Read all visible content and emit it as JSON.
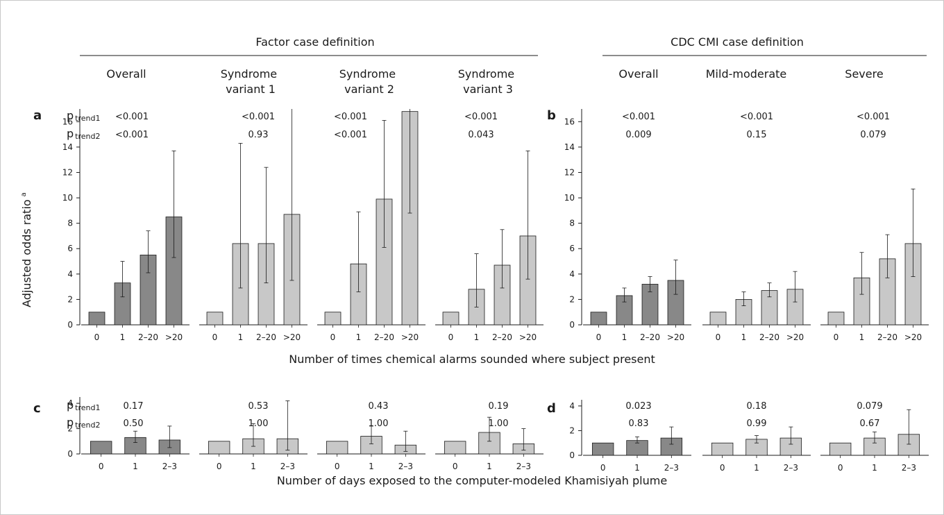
{
  "colors": {
    "dark_bar": "#888888",
    "light_bar": "#c8c8c8",
    "ref_bar": "#c8c8c8",
    "line": "#1a1a1a"
  },
  "headers": {
    "factor": "Factor case definition",
    "cdc": "CDC CMI case definition",
    "factor_cols": [
      "Overall",
      "Syndrome variant 1",
      "Syndrome variant 2",
      "Syndrome variant 3"
    ],
    "cdc_cols": [
      "Overall",
      "Mild-moderate",
      "Severe"
    ]
  },
  "y_axis_label": "Adjusted odds ratio",
  "y_axis_label_sup": "a",
  "ptrend1_label": "p",
  "ptrend1_sub": "trend1",
  "ptrend2_label": "p",
  "ptrend2_sub": "trend2",
  "xlabel_top": "Number of times chemical alarms sounded where subject present",
  "xlabel_bottom": "Number of days exposed to the computer-modeled Khamisiyah plume",
  "chart_data": [
    {
      "type": "bar",
      "panel": "a",
      "ylim": [
        0,
        17
      ],
      "yticks": [
        0,
        2,
        4,
        6,
        8,
        10,
        12,
        14,
        16
      ],
      "categories": [
        "0",
        "1",
        "2–20",
        ">20"
      ],
      "groups": [
        {
          "name": "Overall",
          "shade": "dark",
          "values": [
            1,
            3.3,
            5.5,
            8.5
          ],
          "ci_low": [
            1,
            2.2,
            4.1,
            5.3
          ],
          "ci_high": [
            1,
            5.0,
            7.4,
            13.7
          ],
          "ptrend1": "<0.001",
          "ptrend2": "<0.001"
        },
        {
          "name": "Syndrome variant 1",
          "shade": "light",
          "values": [
            1,
            6.4,
            6.4,
            8.7
          ],
          "ci_low": [
            1,
            2.9,
            3.3,
            3.5
          ],
          "ci_high": [
            1,
            14.3,
            12.4,
            17
          ],
          "ptrend1": "<0.001",
          "ptrend2": "0.93"
        },
        {
          "name": "Syndrome variant 2",
          "shade": "light",
          "values": [
            1,
            4.8,
            9.9,
            16.8
          ],
          "ci_low": [
            1,
            2.6,
            6.1,
            8.8
          ],
          "ci_high": [
            1,
            8.9,
            16.1,
            17
          ],
          "ptrend1": "<0.001",
          "ptrend2": "<0.001"
        },
        {
          "name": "Syndrome variant 3",
          "shade": "light",
          "values": [
            1,
            2.8,
            4.7,
            7.0
          ],
          "ci_low": [
            1,
            1.4,
            2.9,
            3.6
          ],
          "ci_high": [
            1,
            5.6,
            7.5,
            13.7
          ],
          "ptrend1": "<0.001",
          "ptrend2": "0.043"
        }
      ]
    },
    {
      "type": "bar",
      "panel": "b",
      "ylim": [
        0,
        17
      ],
      "yticks": [
        0,
        2,
        4,
        6,
        8,
        10,
        12,
        14,
        16
      ],
      "categories": [
        "0",
        "1",
        "2–20",
        ">20"
      ],
      "groups": [
        {
          "name": "Overall",
          "shade": "dark",
          "values": [
            1,
            2.3,
            3.2,
            3.5
          ],
          "ci_low": [
            1,
            1.8,
            2.6,
            2.4
          ],
          "ci_high": [
            1,
            2.9,
            3.8,
            5.1
          ],
          "ptrend1": "<0.001",
          "ptrend2": "0.009"
        },
        {
          "name": "Mild-moderate",
          "shade": "light",
          "values": [
            1,
            2.0,
            2.7,
            2.8
          ],
          "ci_low": [
            1,
            1.5,
            2.2,
            1.8
          ],
          "ci_high": [
            1,
            2.6,
            3.3,
            4.2
          ],
          "ptrend1": "<0.001",
          "ptrend2": "0.15"
        },
        {
          "name": "Severe",
          "shade": "light",
          "values": [
            1,
            3.7,
            5.2,
            6.4
          ],
          "ci_low": [
            1,
            2.4,
            3.7,
            3.8
          ],
          "ci_high": [
            1,
            5.7,
            7.1,
            10.7
          ],
          "ptrend1": "<0.001",
          "ptrend2": "0.079"
        }
      ]
    },
    {
      "type": "bar",
      "panel": "c",
      "ylim": [
        0,
        4.5
      ],
      "yticks": [
        0,
        2,
        4
      ],
      "categories": [
        "0",
        "1",
        "2–3"
      ],
      "groups": [
        {
          "name": "Overall",
          "shade": "dark",
          "values": [
            1,
            1.3,
            1.1
          ],
          "ci_low": [
            1,
            0.9,
            0.5
          ],
          "ci_high": [
            1,
            1.8,
            2.2
          ],
          "ptrend1": "0.17",
          "ptrend2": "0.50"
        },
        {
          "name": "Syndrome variant 1",
          "shade": "light",
          "values": [
            1,
            1.2,
            1.2
          ],
          "ci_low": [
            1,
            0.6,
            0.3
          ],
          "ci_high": [
            1,
            2.4,
            4.2
          ],
          "ptrend1": "0.53",
          "ptrend2": "1.00"
        },
        {
          "name": "Syndrome variant 2",
          "shade": "light",
          "values": [
            1,
            1.4,
            0.7
          ],
          "ci_low": [
            1,
            0.8,
            0.2
          ],
          "ci_high": [
            1,
            2.2,
            1.8
          ],
          "ptrend1": "0.43",
          "ptrend2": "1.00"
        },
        {
          "name": "Syndrome variant 3",
          "shade": "light",
          "values": [
            1,
            1.7,
            0.8
          ],
          "ci_low": [
            1,
            1.0,
            0.3
          ],
          "ci_high": [
            1,
            2.9,
            2.0
          ],
          "ptrend1": "0.19",
          "ptrend2": "1.00"
        }
      ]
    },
    {
      "type": "bar",
      "panel": "d",
      "ylim": [
        0,
        4.5
      ],
      "yticks": [
        0,
        2,
        4
      ],
      "categories": [
        "0",
        "1",
        "2–3"
      ],
      "groups": [
        {
          "name": "Overall",
          "shade": "dark",
          "values": [
            1,
            1.2,
            1.4
          ],
          "ci_low": [
            1,
            1.0,
            0.9
          ],
          "ci_high": [
            1,
            1.5,
            2.3
          ],
          "ptrend1": "0.023",
          "ptrend2": "0.83"
        },
        {
          "name": "Mild-moderate",
          "shade": "light",
          "values": [
            1,
            1.3,
            1.4
          ],
          "ci_low": [
            1,
            1.0,
            0.9
          ],
          "ci_high": [
            1,
            1.6,
            2.3
          ],
          "ptrend1": "0.18",
          "ptrend2": "0.99"
        },
        {
          "name": "Severe",
          "shade": "light",
          "values": [
            1,
            1.4,
            1.7
          ],
          "ci_low": [
            1,
            1.0,
            0.9
          ],
          "ci_high": [
            1,
            1.9,
            3.7
          ],
          "ptrend1": "0.079",
          "ptrend2": "0.67"
        }
      ]
    }
  ]
}
